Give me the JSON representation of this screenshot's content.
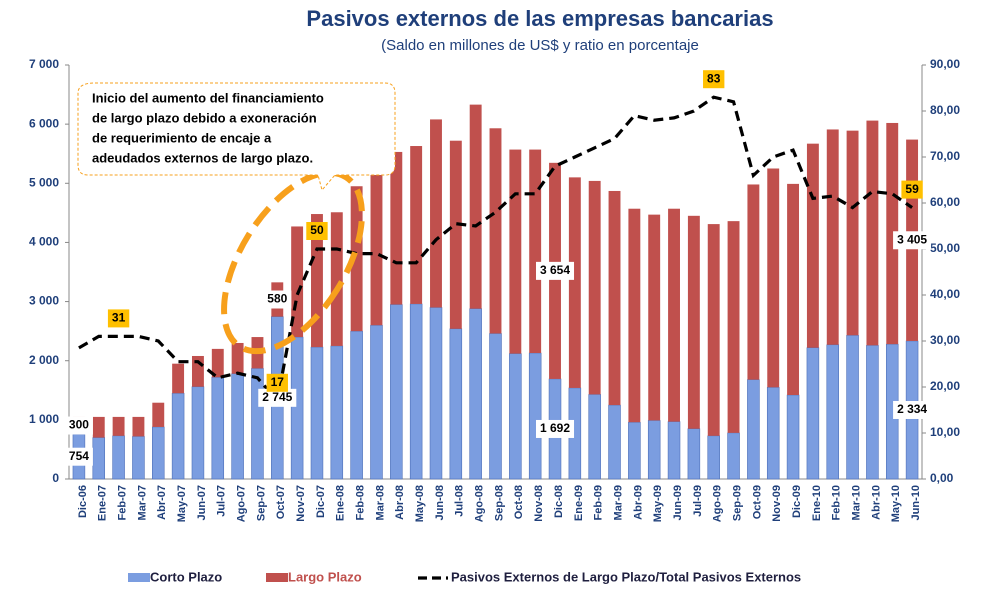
{
  "chart_data": {
    "type": "bar",
    "title": "Pasivos externos de las empresas bancarias",
    "subtitle": "(Saldo en millones de US$ y ratio en porcentaje",
    "annotation": [
      "Inicio del aumento del financiamiento",
      "de largo plazo debido a exoneración",
      "de requerimiento de encaje a",
      "adeudados externos de largo plazo."
    ],
    "categories": [
      "Dic-06",
      "Ene-07",
      "Feb-07",
      "Mar-07",
      "Abr-07",
      "May-07",
      "Jun-07",
      "Jul-07",
      "Ago-07",
      "Sep-07",
      "Oct-07",
      "Nov-07",
      "Dic-07",
      "Ene-08",
      "Feb-08",
      "Mar-08",
      "Abr-08",
      "May-08",
      "Jun-08",
      "Jul-08",
      "Ago-08",
      "Sep-08",
      "Oct-08",
      "Nov-08",
      "Dic-08",
      "Ene-09",
      "Feb-09",
      "Mar-09",
      "Abr-09",
      "May-09",
      "Jun-09",
      "Jul-09",
      "Ago-09",
      "Sep-09",
      "Oct-09",
      "Nov-09",
      "Dic-09",
      "Ene-10",
      "Feb-10",
      "Mar-10",
      "Abr-10",
      "May-10",
      "Jun-10"
    ],
    "series": [
      {
        "name": "Corto Plazo",
        "color": "#7b9de0",
        "stack": true,
        "values": [
          754,
          700,
          730,
          720,
          880,
          1450,
          1560,
          1720,
          1780,
          1870,
          2745,
          2400,
          2230,
          2250,
          2500,
          2600,
          2950,
          2960,
          2900,
          2540,
          2880,
          2460,
          2120,
          2130,
          1692,
          1540,
          1430,
          1250,
          960,
          990,
          970,
          850,
          730,
          780,
          1680,
          1550,
          1420,
          2220,
          2270,
          2430,
          2260,
          2280,
          2334
        ],
        "value_labels": [
          "754",
          null,
          null,
          null,
          null,
          null,
          null,
          null,
          null,
          null,
          "2 745",
          null,
          null,
          null,
          null,
          null,
          null,
          null,
          null,
          null,
          null,
          null,
          null,
          null,
          "1 692",
          null,
          null,
          null,
          null,
          null,
          null,
          null,
          null,
          null,
          null,
          null,
          null,
          null,
          null,
          null,
          null,
          null,
          "2 334"
        ]
      },
      {
        "name": "Largo Plazo",
        "color": "#c0504d",
        "stack": true,
        "values": [
          300,
          350,
          320,
          330,
          410,
          500,
          520,
          480,
          520,
          530,
          580,
          1870,
          2250,
          2260,
          2450,
          2560,
          2580,
          2670,
          3180,
          3180,
          3450,
          3470,
          3450,
          3440,
          3654,
          3560,
          3610,
          3620,
          3610,
          3480,
          3600,
          3600,
          3580,
          3580,
          3300,
          3700,
          3570,
          3450,
          3640,
          3460,
          3800,
          3740,
          3405
        ],
        "value_labels": [
          "300",
          null,
          null,
          null,
          null,
          null,
          null,
          null,
          null,
          null,
          "580",
          null,
          null,
          null,
          null,
          null,
          null,
          null,
          null,
          null,
          null,
          null,
          null,
          null,
          "3 654",
          null,
          null,
          null,
          null,
          null,
          null,
          null,
          null,
          null,
          null,
          null,
          null,
          null,
          null,
          null,
          null,
          null,
          "3 405"
        ]
      },
      {
        "name": "Pasivos Externos de Largo Plazo/Total Pasivos Externos",
        "color": "#000000",
        "axis": "y2",
        "dashed": true,
        "values": [
          28.5,
          31,
          31,
          31,
          30,
          25.5,
          25.5,
          22,
          23,
          22,
          17,
          40,
          50,
          50,
          49,
          49,
          47,
          47,
          52,
          55.5,
          55,
          58,
          62,
          62,
          68,
          70,
          72,
          74,
          79,
          78,
          78.5,
          80,
          83,
          82,
          66,
          70,
          71.5,
          61,
          61.5,
          59,
          62.5,
          62,
          59
        ],
        "value_labels": [
          null,
          null,
          "31",
          null,
          null,
          null,
          null,
          null,
          null,
          null,
          "17",
          null,
          "50",
          null,
          null,
          null,
          null,
          null,
          null,
          null,
          null,
          null,
          null,
          null,
          null,
          null,
          null,
          null,
          null,
          null,
          null,
          null,
          "83",
          null,
          null,
          null,
          null,
          null,
          null,
          null,
          null,
          null,
          "59"
        ]
      }
    ],
    "ylim": [
      0,
      7000
    ],
    "yticks": [
      0,
      {
        "value": 1000,
        "label": "1 000"
      },
      {
        "value": 2000,
        "label": "2 000"
      },
      {
        "value": 3000,
        "label": "3 000"
      },
      {
        "value": 4000,
        "label": "4 000"
      },
      {
        "value": 5000,
        "label": "5 000"
      },
      {
        "value": 6000,
        "label": "6 000"
      },
      {
        "value": 7000,
        "label": "7 000"
      }
    ],
    "y2lim": [
      0,
      90
    ],
    "y2ticks": [
      {
        "value": 0,
        "label": "0,00"
      },
      {
        "value": 10,
        "label": "10,00"
      },
      {
        "value": 20,
        "label": "20,00"
      },
      {
        "value": 30,
        "label": "30,00"
      },
      {
        "value": 40,
        "label": "40,00"
      },
      {
        "value": 50,
        "label": "50,00"
      },
      {
        "value": 60,
        "label": "60,00"
      },
      {
        "value": 70,
        "label": "70,00"
      },
      {
        "value": 80,
        "label": "80,00"
      },
      {
        "value": 90,
        "label": "90,00"
      }
    ],
    "grid": false
  }
}
